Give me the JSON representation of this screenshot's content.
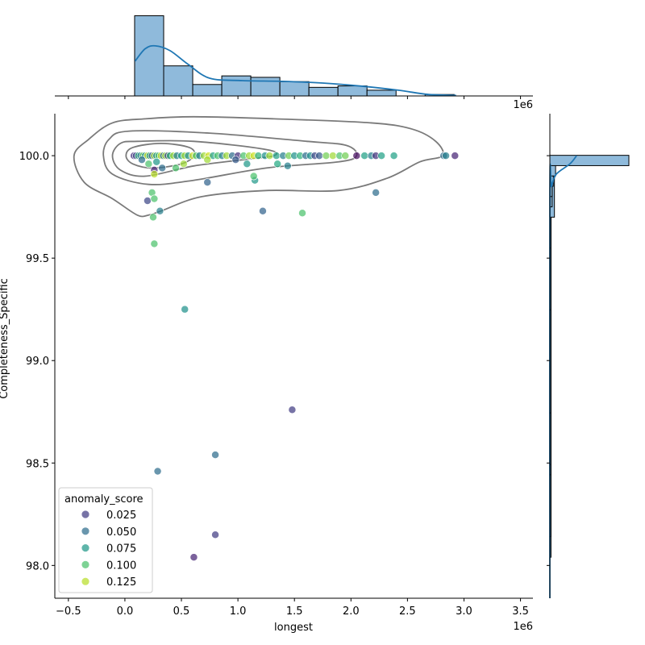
{
  "chart_data": {
    "type": "scatter",
    "subtype": "jointplot with KDE contours and marginal histograms",
    "xlabel": "longest",
    "ylabel": "Completeness_Specific",
    "x_offset_label": "1e6",
    "top_offset_label": "1e6",
    "xlim": [
      -0.62,
      3.61
    ],
    "ylim": [
      97.84,
      100.205
    ],
    "x_ticks": [
      -0.5,
      0.0,
      0.5,
      1.0,
      1.5,
      2.0,
      2.5,
      3.0,
      3.5
    ],
    "x_tick_labels": [
      "−0.5",
      "0.0",
      "0.5",
      "1.0",
      "1.5",
      "2.0",
      "2.5",
      "3.0",
      "3.5"
    ],
    "y_ticks": [
      98.0,
      98.5,
      99.0,
      99.5,
      100.0
    ],
    "y_tick_labels": [
      "98.0",
      "98.5",
      "99.0",
      "99.5",
      "100.0"
    ],
    "hue": "anomaly_score",
    "hue_range": [
      0.0,
      0.14
    ],
    "legend": {
      "title": "anomaly_score",
      "placement": "lower-left",
      "entries": [
        {
          "label": "0.025",
          "value": 0.025
        },
        {
          "label": "0.050",
          "value": 0.05
        },
        {
          "label": "0.075",
          "value": 0.075
        },
        {
          "label": "0.100",
          "value": 0.1
        },
        {
          "label": "0.125",
          "value": 0.125
        }
      ]
    },
    "points": [
      [
        0.08,
        100,
        0.02
      ],
      [
        0.1,
        100,
        0.03
      ],
      [
        0.12,
        100,
        0.09
      ],
      [
        0.14,
        100,
        0.06
      ],
      [
        0.16,
        100,
        0.11
      ],
      [
        0.18,
        100,
        0.07
      ],
      [
        0.2,
        100,
        0.13
      ],
      [
        0.22,
        100,
        0.08
      ],
      [
        0.24,
        100,
        0.04
      ],
      [
        0.26,
        100,
        0.12
      ],
      [
        0.28,
        100,
        0.07
      ],
      [
        0.3,
        100,
        0.1
      ],
      [
        0.32,
        100,
        0.13
      ],
      [
        0.34,
        100,
        0.05
      ],
      [
        0.36,
        100,
        0.12
      ],
      [
        0.38,
        100,
        0.03
      ],
      [
        0.4,
        100,
        0.09
      ],
      [
        0.43,
        100,
        0.12
      ],
      [
        0.46,
        100,
        0.06
      ],
      [
        0.5,
        100,
        0.08
      ],
      [
        0.53,
        100,
        0.12
      ],
      [
        0.56,
        100,
        0.07
      ],
      [
        0.6,
        100,
        0.13
      ],
      [
        0.63,
        100,
        0.1
      ],
      [
        0.66,
        100,
        0.06
      ],
      [
        0.7,
        100,
        0.12
      ],
      [
        0.74,
        100,
        0.13
      ],
      [
        0.78,
        100,
        0.08
      ],
      [
        0.82,
        100,
        0.1
      ],
      [
        0.86,
        100,
        0.06
      ],
      [
        0.9,
        100,
        0.12
      ],
      [
        0.95,
        100,
        0.05
      ],
      [
        1.0,
        100,
        0.02
      ],
      [
        1.05,
        100,
        0.1
      ],
      [
        1.1,
        100,
        0.12
      ],
      [
        1.14,
        100,
        0.13
      ],
      [
        1.18,
        100,
        0.09
      ],
      [
        1.24,
        100,
        0.07
      ],
      [
        1.28,
        100,
        0.12
      ],
      [
        1.34,
        100,
        0.08
      ],
      [
        1.4,
        100,
        0.06
      ],
      [
        1.45,
        100,
        0.11
      ],
      [
        1.5,
        100,
        0.07
      ],
      [
        1.55,
        100,
        0.09
      ],
      [
        1.6,
        100,
        0.05
      ],
      [
        1.64,
        100,
        0.07
      ],
      [
        1.68,
        100,
        0.03
      ],
      [
        1.72,
        100,
        0.04
      ],
      [
        1.78,
        100,
        0.11
      ],
      [
        1.84,
        100,
        0.12
      ],
      [
        1.9,
        100,
        0.1
      ],
      [
        1.95,
        100,
        0.11
      ],
      [
        2.05,
        100,
        0.005
      ],
      [
        2.12,
        100,
        0.08
      ],
      [
        2.18,
        100,
        0.06
      ],
      [
        2.22,
        100,
        0.02
      ],
      [
        2.27,
        100,
        0.08
      ],
      [
        2.38,
        100,
        0.08
      ],
      [
        2.82,
        100,
        0.05
      ],
      [
        2.84,
        100,
        0.06
      ],
      [
        2.92,
        100,
        0.015
      ],
      [
        0.15,
        99.98,
        0.05
      ],
      [
        0.21,
        99.96,
        0.1
      ],
      [
        0.28,
        99.97,
        0.075
      ],
      [
        0.26,
        99.93,
        0.015
      ],
      [
        0.26,
        99.91,
        0.125
      ],
      [
        0.33,
        99.94,
        0.05
      ],
      [
        0.45,
        99.94,
        0.1
      ],
      [
        0.52,
        99.96,
        0.12
      ],
      [
        0.73,
        99.98,
        0.12
      ],
      [
        0.98,
        99.98,
        0.04
      ],
      [
        1.08,
        99.96,
        0.075
      ],
      [
        1.35,
        99.96,
        0.085
      ],
      [
        1.44,
        99.95,
        0.06
      ],
      [
        1.15,
        99.88,
        0.075
      ],
      [
        1.14,
        99.9,
        0.1
      ],
      [
        0.73,
        99.87,
        0.045
      ],
      [
        1.22,
        99.73,
        0.045
      ],
      [
        1.57,
        99.72,
        0.1
      ],
      [
        2.22,
        99.82,
        0.05
      ],
      [
        0.2,
        99.78,
        0.03
      ],
      [
        0.24,
        99.82,
        0.1
      ],
      [
        0.26,
        99.79,
        0.1
      ],
      [
        0.31,
        99.73,
        0.06
      ],
      [
        0.25,
        99.7,
        0.1
      ],
      [
        0.26,
        99.57,
        0.1
      ],
      [
        0.53,
        99.25,
        0.07
      ],
      [
        1.48,
        98.76,
        0.025
      ],
      [
        0.8,
        98.54,
        0.05
      ],
      [
        0.29,
        98.46,
        0.05
      ],
      [
        0.8,
        98.15,
        0.025
      ],
      [
        0.61,
        98.04,
        0.015
      ]
    ],
    "kde_contours": [
      [
        [
          -0.45,
          100.0
        ],
        [
          -0.32,
          100.08
        ],
        [
          -0.11,
          100.16
        ],
        [
          0.18,
          100.18
        ],
        [
          0.61,
          100.19
        ],
        [
          1.32,
          100.18
        ],
        [
          2.18,
          100.16
        ],
        [
          2.54,
          100.13
        ],
        [
          2.75,
          100.07
        ],
        [
          2.81,
          100.0
        ],
        [
          2.61,
          99.97
        ],
        [
          2.32,
          99.89
        ],
        [
          1.89,
          99.83
        ],
        [
          1.25,
          99.83
        ],
        [
          0.68,
          99.8
        ],
        [
          0.32,
          99.73
        ],
        [
          0.21,
          99.71
        ],
        [
          0.11,
          99.71
        ],
        [
          -0.11,
          99.79
        ],
        [
          -0.36,
          99.87
        ]
      ],
      [
        [
          -0.19,
          100.0
        ],
        [
          -0.14,
          100.08
        ],
        [
          0.04,
          100.12
        ],
        [
          0.75,
          100.11
        ],
        [
          1.61,
          100.07
        ],
        [
          1.96,
          100.05
        ],
        [
          2.05,
          100.0
        ],
        [
          1.89,
          99.97
        ],
        [
          1.25,
          99.94
        ],
        [
          0.61,
          99.88
        ],
        [
          0.21,
          99.86
        ],
        [
          -0.11,
          99.91
        ]
      ],
      [
        [
          -0.11,
          100.0
        ],
        [
          -0.04,
          100.06
        ],
        [
          0.11,
          100.07
        ],
        [
          0.61,
          100.07
        ],
        [
          1.25,
          100.03
        ],
        [
          1.32,
          100.0
        ],
        [
          1.04,
          99.98
        ],
        [
          0.61,
          99.95
        ],
        [
          0.18,
          99.9
        ],
        [
          -0.04,
          99.93
        ]
      ],
      [
        [
          0.01,
          100.0
        ],
        [
          0.07,
          100.04
        ],
        [
          0.32,
          100.06
        ],
        [
          0.57,
          100.04
        ],
        [
          0.61,
          100.0
        ],
        [
          0.5,
          99.96
        ],
        [
          0.25,
          99.94
        ],
        [
          0.07,
          99.96
        ]
      ]
    ],
    "top_histogram": {
      "bin_start": 0.086,
      "bin_width": 0.257,
      "counts": [
        56,
        21,
        8,
        14,
        13,
        10,
        6,
        7,
        4,
        0,
        1
      ],
      "ylim": [
        0,
        67
      ],
      "kde": [
        [
          0.09,
          24.3
        ],
        [
          0.18,
          33
        ],
        [
          0.27,
          35
        ],
        [
          0.4,
          31.6
        ],
        [
          0.56,
          22
        ],
        [
          0.75,
          12.4
        ],
        [
          1.04,
          10.7
        ],
        [
          1.39,
          10.2
        ],
        [
          1.75,
          9
        ],
        [
          2.1,
          6.8
        ],
        [
          2.42,
          4
        ],
        [
          2.68,
          1.1
        ],
        [
          2.93,
          0.4
        ]
      ]
    },
    "right_histogram": {
      "bin_start": 98.04,
      "bin_width": 0.0503,
      "max_count_axis": 130,
      "kde": [
        [
          100.0,
          44
        ],
        [
          99.96,
          33
        ],
        [
          99.91,
          10.6
        ],
        [
          99.85,
          2.7
        ],
        [
          99.8,
          0
        ],
        [
          97.84,
          0
        ]
      ]
    },
    "colors": {
      "hist_fill": "#8fbadb",
      "kde_line": "#1f77b4",
      "contour": "#7a7a7a"
    }
  }
}
